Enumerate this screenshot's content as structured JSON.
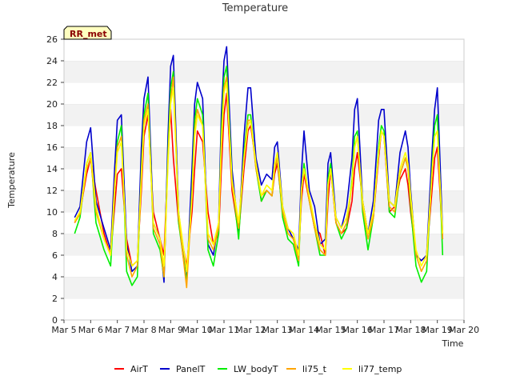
{
  "chart_data": {
    "type": "line",
    "title": "Temperature",
    "xlabel": "Time",
    "ylabel": "Temperature",
    "site_label": "RR_met",
    "xlim": [
      5,
      20
    ],
    "ylim": [
      0,
      26
    ],
    "yticks": [
      0,
      2,
      4,
      6,
      8,
      10,
      12,
      14,
      16,
      18,
      20,
      22,
      24,
      26
    ],
    "xticks": [
      {
        "value": 5,
        "label": "Mar 5"
      },
      {
        "value": 6,
        "label": "Mar 6"
      },
      {
        "value": 7,
        "label": "Mar 7"
      },
      {
        "value": 8,
        "label": "Mar 8"
      },
      {
        "value": 9,
        "label": "Mar 9"
      },
      {
        "value": 10,
        "label": "Mar 10"
      },
      {
        "value": 11,
        "label": "Mar 11"
      },
      {
        "value": 12,
        "label": "Mar 12"
      },
      {
        "value": 13,
        "label": "Mar 13"
      },
      {
        "value": 14,
        "label": "Mar 14"
      },
      {
        "value": 15,
        "label": "Mar 15"
      },
      {
        "value": 16,
        "label": "Mar 16"
      },
      {
        "value": 17,
        "label": "Mar 17"
      },
      {
        "value": 18,
        "label": "Mar 18"
      },
      {
        "value": 19,
        "label": "Mar 19"
      },
      {
        "value": 20,
        "label": "Mar 20"
      }
    ],
    "banded_background": true,
    "series": [
      {
        "name": "AirT",
        "color": "#ff0000",
        "x": [
          5.4,
          5.6,
          5.85,
          6.0,
          6.2,
          6.5,
          6.75,
          6.9,
          7.0,
          7.15,
          7.35,
          7.55,
          7.75,
          7.9,
          8.0,
          8.15,
          8.35,
          8.6,
          8.75,
          8.9,
          9.0,
          9.1,
          9.3,
          9.6,
          9.8,
          9.9,
          10.0,
          10.2,
          10.4,
          10.6,
          10.8,
          10.9,
          11.0,
          11.1,
          11.3,
          11.55,
          11.75,
          11.9,
          12.0,
          12.2,
          12.4,
          12.6,
          12.8,
          12.9,
          13.0,
          13.2,
          13.4,
          13.6,
          13.8,
          13.9,
          14.0,
          14.2,
          14.4,
          14.6,
          14.8,
          14.9,
          15.0,
          15.2,
          15.4,
          15.6,
          15.8,
          15.9,
          16.0,
          16.2,
          16.4,
          16.6,
          16.8,
          16.9,
          17.0,
          17.2,
          17.4,
          17.6,
          17.8,
          17.9,
          18.0,
          18.2,
          18.4,
          18.6,
          18.8,
          18.9,
          19.0,
          19.2
        ],
        "y": [
          9.0,
          10.0,
          13.5,
          15.0,
          12.0,
          8.0,
          6.0,
          10.5,
          13.5,
          14.0,
          7.5,
          5.0,
          5.5,
          12.0,
          17.0,
          19.0,
          10.0,
          7.5,
          6.0,
          15.0,
          19.5,
          15.0,
          9.0,
          5.0,
          10.0,
          14.0,
          17.5,
          16.5,
          10.0,
          7.0,
          8.0,
          14.0,
          19.0,
          21.0,
          12.0,
          8.0,
          14.0,
          17.5,
          18.0,
          14.5,
          11.0,
          12.0,
          11.5,
          13.5,
          14.5,
          10.0,
          8.5,
          7.5,
          6.0,
          11.0,
          13.5,
          11.0,
          8.5,
          8.0,
          6.0,
          11.0,
          14.0,
          9.0,
          8.0,
          8.5,
          11.0,
          14.0,
          15.5,
          11.0,
          8.0,
          9.5,
          15.0,
          17.5,
          17.0,
          10.0,
          10.5,
          13.0,
          14.0,
          12.5,
          10.0,
          6.0,
          5.5,
          6.0,
          12.0,
          15.0,
          16.0,
          7.5
        ]
      },
      {
        "name": "PanelT",
        "color": "#0000cc",
        "x": [
          5.4,
          5.6,
          5.85,
          6.0,
          6.2,
          6.5,
          6.75,
          6.9,
          7.0,
          7.15,
          7.35,
          7.55,
          7.75,
          7.9,
          8.0,
          8.15,
          8.35,
          8.6,
          8.75,
          8.9,
          9.0,
          9.1,
          9.3,
          9.6,
          9.8,
          9.9,
          10.0,
          10.2,
          10.4,
          10.6,
          10.8,
          10.9,
          11.0,
          11.1,
          11.3,
          11.55,
          11.75,
          11.9,
          12.0,
          12.2,
          12.4,
          12.6,
          12.8,
          12.9,
          13.0,
          13.2,
          13.4,
          13.6,
          13.8,
          13.9,
          14.0,
          14.2,
          14.4,
          14.6,
          14.8,
          14.9,
          15.0,
          15.2,
          15.4,
          15.6,
          15.8,
          15.9,
          16.0,
          16.2,
          16.4,
          16.6,
          16.8,
          16.9,
          17.0,
          17.2,
          17.4,
          17.6,
          17.8,
          17.9,
          18.0,
          18.2,
          18.4,
          18.6,
          18.8,
          18.9,
          19.0,
          19.2
        ],
        "y": [
          9.5,
          10.5,
          16.5,
          17.8,
          11.0,
          8.5,
          6.5,
          14.0,
          18.5,
          19.0,
          7.0,
          4.5,
          5.0,
          16.0,
          20.5,
          22.5,
          9.0,
          7.5,
          3.5,
          17.0,
          23.5,
          24.5,
          10.0,
          3.5,
          14.0,
          20.0,
          22.0,
          20.5,
          7.0,
          6.0,
          9.0,
          19.0,
          24.0,
          25.3,
          14.0,
          8.0,
          17.0,
          21.5,
          21.5,
          15.0,
          12.5,
          13.5,
          13.0,
          16.0,
          16.5,
          10.5,
          8.5,
          7.5,
          6.5,
          13.5,
          17.5,
          12.0,
          10.5,
          7.0,
          7.5,
          14.5,
          15.5,
          9.5,
          8.5,
          10.5,
          15.0,
          19.5,
          20.5,
          11.0,
          8.0,
          11.0,
          18.5,
          19.5,
          19.5,
          11.0,
          10.5,
          15.5,
          17.5,
          16.0,
          12.0,
          6.0,
          5.5,
          6.0,
          15.5,
          19.5,
          21.5,
          8.0
        ]
      },
      {
        "name": "LW_bodyT",
        "color": "#00ee00",
        "x": [
          5.4,
          5.6,
          5.85,
          6.0,
          6.2,
          6.5,
          6.75,
          6.9,
          7.0,
          7.15,
          7.35,
          7.55,
          7.75,
          7.9,
          8.0,
          8.15,
          8.35,
          8.6,
          8.75,
          8.9,
          9.0,
          9.1,
          9.3,
          9.6,
          9.8,
          9.9,
          10.0,
          10.2,
          10.4,
          10.6,
          10.8,
          10.9,
          11.0,
          11.1,
          11.3,
          11.55,
          11.75,
          11.9,
          12.0,
          12.2,
          12.4,
          12.6,
          12.8,
          12.9,
          13.0,
          13.2,
          13.4,
          13.6,
          13.8,
          13.9,
          14.0,
          14.2,
          14.4,
          14.6,
          14.8,
          14.9,
          15.0,
          15.2,
          15.4,
          15.6,
          15.8,
          15.9,
          16.0,
          16.2,
          16.4,
          16.6,
          16.8,
          16.9,
          17.0,
          17.2,
          17.4,
          17.6,
          17.8,
          17.9,
          18.0,
          18.2,
          18.4,
          18.6,
          18.8,
          18.9,
          19.0,
          19.2
        ],
        "y": [
          8.0,
          9.5,
          14.5,
          15.5,
          9.0,
          6.5,
          5.0,
          12.0,
          16.5,
          18.0,
          4.5,
          3.2,
          4.0,
          14.0,
          19.0,
          21.0,
          8.0,
          6.5,
          4.0,
          15.5,
          21.5,
          23.0,
          9.0,
          3.5,
          12.0,
          18.5,
          20.5,
          19.0,
          6.5,
          5.0,
          8.0,
          17.5,
          22.5,
          23.5,
          13.0,
          7.5,
          15.5,
          19.0,
          19.0,
          14.0,
          11.0,
          12.0,
          11.5,
          14.0,
          15.0,
          9.5,
          7.5,
          7.0,
          5.0,
          12.0,
          14.5,
          11.0,
          8.5,
          6.0,
          6.0,
          13.0,
          14.5,
          9.0,
          7.5,
          8.5,
          13.0,
          17.0,
          17.5,
          10.0,
          6.5,
          9.5,
          16.0,
          18.0,
          17.5,
          10.0,
          9.5,
          13.5,
          15.0,
          14.0,
          10.5,
          5.0,
          3.5,
          4.5,
          14.0,
          18.0,
          19.0,
          6.0
        ]
      },
      {
        "name": "li75_t",
        "color": "#ffa500",
        "x": [
          5.4,
          5.6,
          5.85,
          6.0,
          6.2,
          6.5,
          6.75,
          6.9,
          7.0,
          7.15,
          7.35,
          7.55,
          7.75,
          7.9,
          8.0,
          8.15,
          8.35,
          8.6,
          8.75,
          8.9,
          9.0,
          9.1,
          9.3,
          9.6,
          9.8,
          9.9,
          10.0,
          10.2,
          10.4,
          10.6,
          10.8,
          10.9,
          11.0,
          11.1,
          11.3,
          11.55,
          11.75,
          11.9,
          12.0,
          12.2,
          12.4,
          12.6,
          12.8,
          12.9,
          13.0,
          13.2,
          13.4,
          13.6,
          13.8,
          13.9,
          14.0,
          14.2,
          14.4,
          14.6,
          14.8,
          14.9,
          15.0,
          15.2,
          15.4,
          15.6,
          15.8,
          15.9,
          16.0,
          16.2,
          16.4,
          16.6,
          16.8,
          16.9,
          17.0,
          17.2,
          17.4,
          17.6,
          17.8,
          17.9,
          18.0,
          18.2,
          18.4,
          18.6,
          18.8,
          18.9,
          19.0,
          19.2
        ],
        "y": [
          9.0,
          9.8,
          14.0,
          15.0,
          10.0,
          7.5,
          6.0,
          12.5,
          16.0,
          17.0,
          6.0,
          4.0,
          5.0,
          13.5,
          18.5,
          20.0,
          8.5,
          7.0,
          4.0,
          15.0,
          20.5,
          22.5,
          9.5,
          3.0,
          11.5,
          17.5,
          19.5,
          18.0,
          7.5,
          6.5,
          8.5,
          16.5,
          21.5,
          22.5,
          12.5,
          8.5,
          15.0,
          18.5,
          18.5,
          14.0,
          11.5,
          12.0,
          11.5,
          14.0,
          15.0,
          10.0,
          8.0,
          7.5,
          5.5,
          12.0,
          14.0,
          11.0,
          8.5,
          6.5,
          6.0,
          12.5,
          14.0,
          9.0,
          8.0,
          9.0,
          12.5,
          16.0,
          17.0,
          10.5,
          7.5,
          9.5,
          15.5,
          17.5,
          17.0,
          10.5,
          10.0,
          13.5,
          15.0,
          14.0,
          11.0,
          6.0,
          4.5,
          5.5,
          13.5,
          17.0,
          17.5,
          7.5
        ]
      },
      {
        "name": "li77_temp",
        "color": "#ffff00",
        "x": [
          5.4,
          5.6,
          5.85,
          6.0,
          6.2,
          6.5,
          6.75,
          6.9,
          7.0,
          7.15,
          7.35,
          7.55,
          7.75,
          7.9,
          8.0,
          8.15,
          8.35,
          8.6,
          8.75,
          8.9,
          9.0,
          9.1,
          9.3,
          9.6,
          9.8,
          9.9,
          10.0,
          10.2,
          10.4,
          10.6,
          10.8,
          10.9,
          11.0,
          11.1,
          11.3,
          11.55,
          11.75,
          11.9,
          12.0,
          12.2,
          12.4,
          12.6,
          12.8,
          12.9,
          13.0,
          13.2,
          13.4,
          13.6,
          13.8,
          13.9,
          14.0,
          14.2,
          14.4,
          14.6,
          14.8,
          14.9,
          15.0,
          15.2,
          15.4,
          15.6,
          15.8,
          15.9,
          16.0,
          16.2,
          16.4,
          16.6,
          16.8,
          16.9,
          17.0,
          17.2,
          17.4,
          17.6,
          17.8,
          17.9,
          18.0,
          18.2,
          18.4,
          18.6,
          18.8,
          18.9,
          19.0,
          19.2
        ],
        "y": [
          9.2,
          10.0,
          14.5,
          15.5,
          10.5,
          7.5,
          6.0,
          12.0,
          15.5,
          16.5,
          6.5,
          5.0,
          5.5,
          13.0,
          18.0,
          19.5,
          9.0,
          7.5,
          5.0,
          14.5,
          20.0,
          21.5,
          10.0,
          4.5,
          11.5,
          17.0,
          19.0,
          18.0,
          8.0,
          7.0,
          9.0,
          16.0,
          21.0,
          22.0,
          13.0,
          9.0,
          15.0,
          18.0,
          18.5,
          14.5,
          11.5,
          12.5,
          12.0,
          14.5,
          15.5,
          10.5,
          8.5,
          8.0,
          6.0,
          12.0,
          14.0,
          11.5,
          9.0,
          7.0,
          6.5,
          12.5,
          14.0,
          9.5,
          8.5,
          9.5,
          12.5,
          16.0,
          17.0,
          11.0,
          8.0,
          10.0,
          15.5,
          17.5,
          17.0,
          11.0,
          10.5,
          14.0,
          15.5,
          14.5,
          11.5,
          6.5,
          5.0,
          6.0,
          13.5,
          17.0,
          17.5,
          8.0
        ]
      }
    ]
  }
}
